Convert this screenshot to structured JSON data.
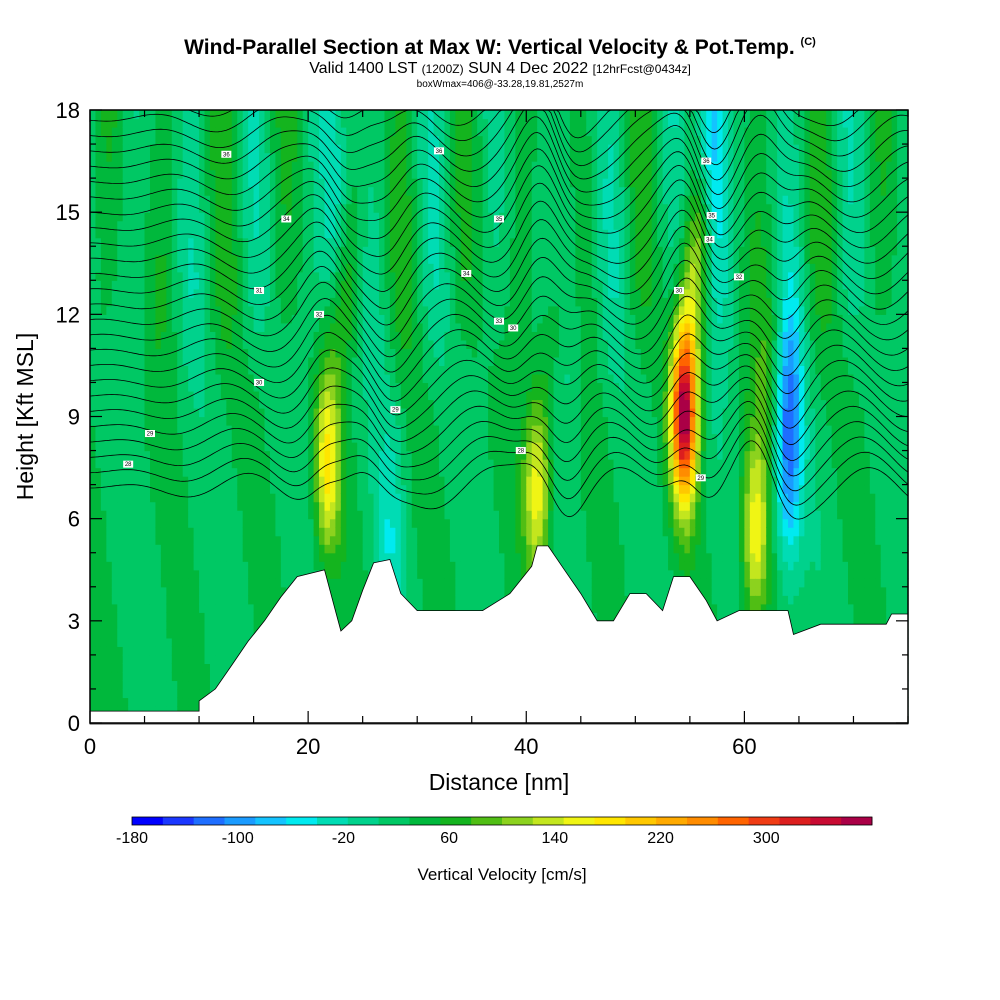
{
  "title": "Wind-Parallel Section at Max W: Vertical Velocity & Pot.Temp.",
  "title_mark": "(C)",
  "subtitle_main": "Valid 1400 LST",
  "subtitle_utc": "(1200Z)",
  "subtitle_date": "SUN 4 Dec 2022",
  "subtitle_fcst": "[12hrFcst@0434z]",
  "subtitle2": "boxWmax=406@-33.28,19.81,2527m",
  "chart_data": {
    "type": "heatmap",
    "xlabel": "Distance [nm]",
    "ylabel": "Height [Kft MSL]",
    "xlim": [
      0,
      75
    ],
    "ylim": [
      0,
      18
    ],
    "x_ticks": [
      "0",
      "20",
      "40",
      "60"
    ],
    "x_tick_values": [
      0,
      20,
      40,
      60
    ],
    "y_ticks": [
      "0",
      "3",
      "6",
      "9",
      "12",
      "15",
      "18"
    ],
    "y_tick_values": [
      0,
      3,
      6,
      9,
      12,
      15,
      18
    ],
    "colorbar": {
      "title": "Vertical Velocity [cm/s]",
      "labels": [
        "-180",
        "-100",
        "-20",
        "60",
        "140",
        "220",
        "300"
      ],
      "label_values": [
        -180,
        -100,
        -20,
        60,
        140,
        220,
        300
      ],
      "range": [
        -180,
        380
      ],
      "colors": [
        "#0000ff",
        "#1a37ff",
        "#1e6eff",
        "#1a9bff",
        "#14c3ff",
        "#00eaf0",
        "#00dcb4",
        "#00d28c",
        "#00c864",
        "#00b83c",
        "#14b41e",
        "#50be14",
        "#8cd21e",
        "#c3e61e",
        "#f0f514",
        "#ffe600",
        "#ffc800",
        "#ffaa00",
        "#ff8c00",
        "#ff6400",
        "#f03c14",
        "#dc1e1e",
        "#c80a32",
        "#aa0046"
      ]
    },
    "terrain_kft": [
      [
        0,
        0.35
      ],
      [
        10,
        0.35
      ],
      [
        10,
        0.65
      ],
      [
        11.5,
        1.0
      ],
      [
        13,
        1.7
      ],
      [
        14.5,
        2.4
      ],
      [
        16,
        3.0
      ],
      [
        17.5,
        3.7
      ],
      [
        19,
        4.3
      ],
      [
        21.5,
        4.5
      ],
      [
        22.5,
        3.3
      ],
      [
        23,
        2.7
      ],
      [
        24,
        3.0
      ],
      [
        25,
        3.9
      ],
      [
        26,
        4.7
      ],
      [
        27.5,
        4.8
      ],
      [
        28.5,
        3.8
      ],
      [
        30,
        3.3
      ],
      [
        36,
        3.3
      ],
      [
        38.5,
        3.8
      ],
      [
        40.5,
        4.6
      ],
      [
        41,
        5.2
      ],
      [
        42,
        5.2
      ],
      [
        43.5,
        4.5
      ],
      [
        45,
        3.8
      ],
      [
        46.5,
        3.0
      ],
      [
        48,
        3.0
      ],
      [
        49.5,
        3.8
      ],
      [
        51,
        3.8
      ],
      [
        52.5,
        3.3
      ],
      [
        53.5,
        4.3
      ],
      [
        55,
        4.3
      ],
      [
        56.5,
        3.6
      ],
      [
        57.5,
        3.0
      ],
      [
        59.5,
        3.3
      ],
      [
        64,
        3.3
      ],
      [
        64.5,
        2.6
      ],
      [
        67,
        2.9
      ],
      [
        73,
        2.9
      ],
      [
        73.5,
        3.2
      ],
      [
        75,
        3.2
      ]
    ],
    "updrafts": [
      {
        "x": 21.8,
        "z": 7.5,
        "w": 140
      },
      {
        "x": 41.0,
        "z": 6.8,
        "w": 135
      },
      {
        "x": 54.5,
        "z": 9.0,
        "w": 330
      },
      {
        "x": 61.0,
        "z": 5.5,
        "w": 130
      }
    ],
    "downdrafts": [
      {
        "x": 22.5,
        "z": 15.0,
        "w": -70
      },
      {
        "x": 27.5,
        "z": 5.5,
        "w": -50
      },
      {
        "x": 44.0,
        "z": 13.0,
        "w": -60
      },
      {
        "x": 57.0,
        "z": 16.5,
        "w": -170
      },
      {
        "x": 64.0,
        "z": 8.5,
        "w": -150
      }
    ],
    "contour_labels": [
      {
        "text": "28",
        "x": 3.5,
        "z": 7.6
      },
      {
        "text": "29",
        "x": 5.5,
        "z": 8.5
      },
      {
        "text": "30",
        "x": 15.5,
        "z": 10.0
      },
      {
        "text": "31",
        "x": 15.5,
        "z": 12.7
      },
      {
        "text": "32",
        "x": 21.0,
        "z": 12.0
      },
      {
        "text": "34",
        "x": 18.0,
        "z": 14.8
      },
      {
        "text": "36",
        "x": 12.5,
        "z": 16.7
      },
      {
        "text": "36",
        "x": 32.0,
        "z": 16.8
      },
      {
        "text": "35",
        "x": 37.5,
        "z": 14.8
      },
      {
        "text": "34",
        "x": 34.5,
        "z": 13.2
      },
      {
        "text": "33",
        "x": 37.5,
        "z": 11.8
      },
      {
        "text": "30",
        "x": 38.8,
        "z": 11.6
      },
      {
        "text": "29",
        "x": 28.0,
        "z": 9.2
      },
      {
        "text": "28",
        "x": 39.5,
        "z": 8.0
      },
      {
        "text": "36",
        "x": 56.5,
        "z": 16.5
      },
      {
        "text": "35",
        "x": 57.0,
        "z": 14.9
      },
      {
        "text": "34",
        "x": 56.8,
        "z": 14.2
      },
      {
        "text": "32",
        "x": 59.5,
        "z": 13.1
      },
      {
        "text": "30",
        "x": 54.0,
        "z": 12.7
      },
      {
        "text": "29",
        "x": 56.0,
        "z": 7.2
      }
    ]
  }
}
